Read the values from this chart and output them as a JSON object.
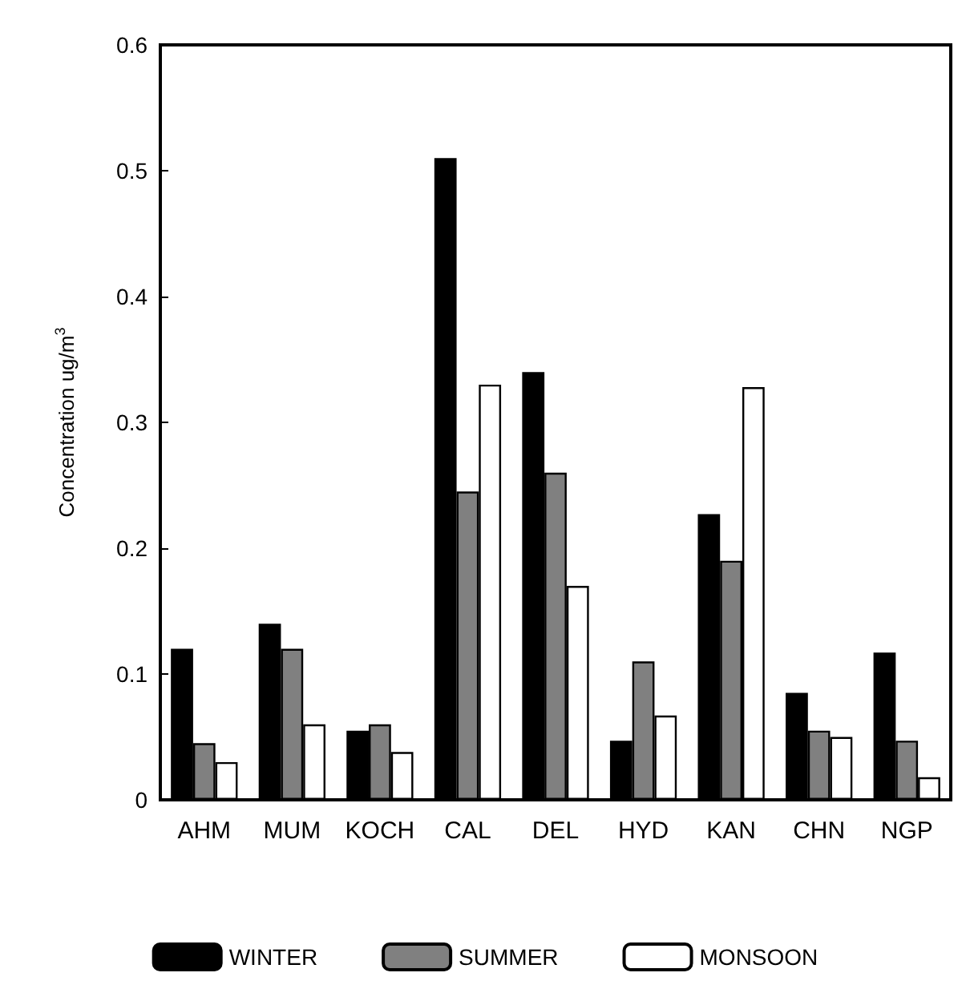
{
  "chart_data": {
    "type": "bar",
    "ylabel": "Concentration ug/m$^{3}$",
    "categories": [
      "AHM",
      "MUM",
      "KOCH",
      "CAL",
      "DEL",
      "HYD",
      "KAN",
      "CHN",
      "NGP"
    ],
    "series": [
      {
        "name": "WINTER",
        "color": "#000000",
        "values": [
          0.12,
          0.14,
          0.055,
          0.51,
          0.34,
          0.047,
          0.227,
          0.085,
          0.117
        ]
      },
      {
        "name": "SUMMER",
        "color": "#808080",
        "values": [
          0.045,
          0.12,
          0.06,
          0.245,
          0.26,
          0.11,
          0.19,
          0.055,
          0.047
        ]
      },
      {
        "name": "MONSOON",
        "color": "#ffffff",
        "values": [
          0.03,
          0.06,
          0.038,
          0.33,
          0.17,
          0.067,
          0.328,
          0.05,
          0.018
        ]
      }
    ],
    "ylim": [
      0,
      0.6
    ],
    "yticks": [
      0,
      0.1,
      0.2,
      0.3,
      0.4,
      0.5,
      0.6
    ],
    "grid": false,
    "legend": "bottom"
  }
}
